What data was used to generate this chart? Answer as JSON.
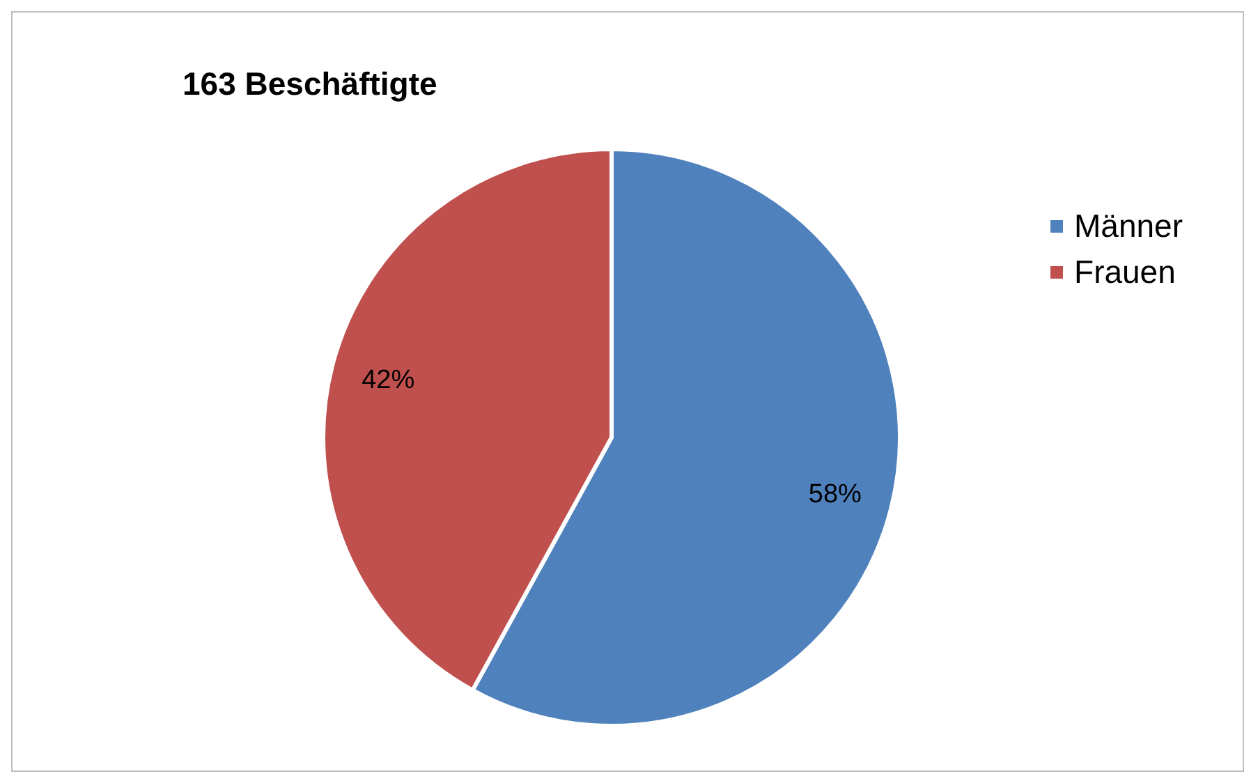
{
  "chart_data": {
    "type": "pie",
    "title": "163 Beschäftigte",
    "categories": [
      "Männer",
      "Frauen"
    ],
    "values": [
      58,
      42
    ],
    "value_labels": [
      "58%",
      "42%"
    ],
    "colors": [
      "#4f81bd",
      "#c0504d"
    ],
    "legend": "right"
  }
}
